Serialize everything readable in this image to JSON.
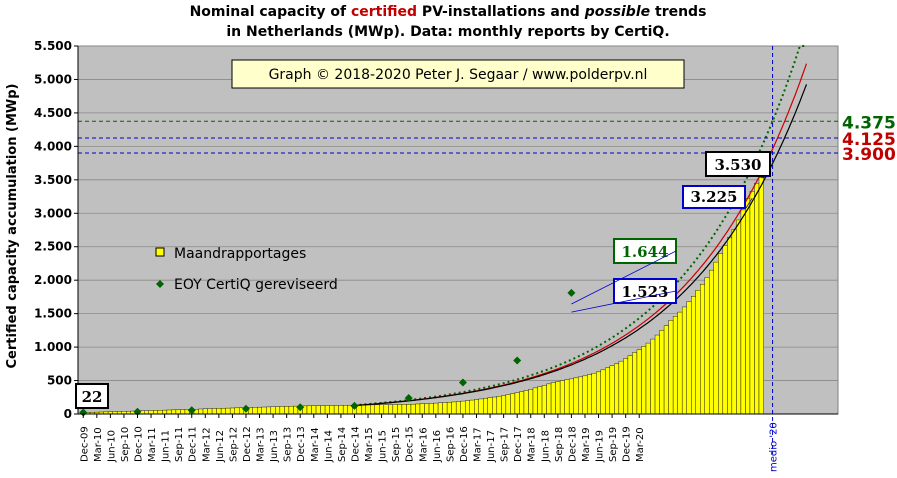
{
  "chart_data": {
    "type": "bar",
    "title_parts": [
      {
        "text": "Nominal capacity of ",
        "style": "normal",
        "color": "#000000"
      },
      {
        "text": "certified",
        "style": "normal",
        "color": "#c00000"
      },
      {
        "text": " PV-installations and ",
        "style": "normal",
        "color": "#000000"
      },
      {
        "text": "possible",
        "style": "italic",
        "color": "#000000"
      },
      {
        "text": " trends",
        "style": "normal",
        "color": "#000000"
      }
    ],
    "title_line2": "in Netherlands (MWp). Data: monthly reports by CertiQ.",
    "ylabel": "Certified capacity accumulation (MWp)",
    "ylim": [
      0,
      5500
    ],
    "yticks": [
      0,
      500,
      1000,
      1500,
      2000,
      2500,
      3000,
      3500,
      4000,
      4500,
      5000,
      5500
    ],
    "ytick_labels": [
      "0",
      "500",
      "1.000",
      "1.500",
      "2.000",
      "2.500",
      "3.000",
      "3.500",
      "4.000",
      "4.500",
      "5.000",
      "5.500"
    ],
    "x_tick_labels": [
      "Dec-09",
      "Mar-10",
      "Jun-10",
      "Sep-10",
      "Dec-10",
      "Mar-11",
      "Jun-11",
      "Sep-11",
      "Dec-11",
      "Mar-12",
      "Jun-12",
      "Sep-12",
      "Dec-12",
      "Mar-13",
      "Jun-13",
      "Sep-13",
      "Dec-13",
      "Mar-14",
      "Jun-14",
      "Sep-14",
      "Dec-14",
      "Mar-15",
      "Jun-15",
      "Sep-15",
      "Dec-15",
      "Mar-16",
      "Jun-16",
      "Sep-16",
      "Dec-16",
      "Mar-17",
      "Jun-17",
      "Sep-17",
      "Dec-17",
      "Mar-18",
      "Jun-18",
      "Sep-18",
      "Dec-18",
      "Mar-19",
      "Jun-19",
      "Sep-19",
      "Dec-19",
      "Mar-20"
    ],
    "medio_label": "medio '20",
    "grid": true,
    "legend_position": "middle-left",
    "series": [
      {
        "name": "Maandrapportages",
        "kind": "bar",
        "color": "#ffff00",
        "note": "monthly values Dec-09 .. Apr-20",
        "values": [
          22,
          24,
          26,
          28,
          30,
          32,
          34,
          36,
          38,
          40,
          42,
          44,
          46,
          48,
          50,
          52,
          54,
          56,
          58,
          60,
          62,
          64,
          66,
          68,
          70,
          72,
          75,
          78,
          80,
          82,
          84,
          86,
          88,
          90,
          92,
          94,
          96,
          98,
          100,
          102,
          104,
          106,
          108,
          110,
          112,
          114,
          116,
          118,
          120,
          121,
          122,
          123,
          124,
          125,
          126,
          127,
          128,
          129,
          130,
          131,
          132,
          133,
          134,
          135,
          136,
          137,
          138,
          139,
          140,
          141,
          142,
          143,
          145,
          147,
          150,
          153,
          156,
          159,
          163,
          167,
          171,
          175,
          180,
          186,
          193,
          200,
          208,
          216,
          225,
          234,
          244,
          254,
          265,
          277,
          290,
          304,
          319,
          335,
          352,
          370,
          390,
          410,
          430,
          450,
          470,
          485,
          500,
          512,
          525,
          540,
          555,
          570,
          590,
          610,
          630,
          660,
          690,
          720,
          750,
          790,
          830,
          870,
          920,
          960,
          1010,
          1060,
          1120,
          1180,
          1250,
          1320,
          1400,
          1460,
          1523,
          1600,
          1680,
          1760,
          1850,
          1940,
          2040,
          2150,
          2270,
          2400,
          2520,
          2640,
          2760,
          2900,
          3050,
          3225,
          3330,
          3450,
          3530
        ]
      },
      {
        "name": "EOY CertiQ gereviseerd",
        "kind": "marker",
        "color": "#006400",
        "points": [
          {
            "x": "Dec-09",
            "y": 22
          },
          {
            "x": "Dec-10",
            "y": 34
          },
          {
            "x": "Dec-11",
            "y": 56
          },
          {
            "x": "Dec-12",
            "y": 78
          },
          {
            "x": "Dec-13",
            "y": 100
          },
          {
            "x": "Dec-14",
            "y": 122
          },
          {
            "x": "Dec-15",
            "y": 240
          },
          {
            "x": "Dec-16",
            "y": 470
          },
          {
            "x": "Dec-17",
            "y": 800
          },
          {
            "x": "Dec-18",
            "y": 1810
          }
        ]
      }
    ],
    "trend_lines": [
      {
        "style": "dotted",
        "color": "#006400",
        "target": 4375
      },
      {
        "style": "solid",
        "color": "#cc0000",
        "target": 4125
      },
      {
        "style": "solid",
        "color": "#000000",
        "target": 3900
      }
    ],
    "reference_lines": [
      {
        "y": 4375,
        "color": "#006400",
        "label": "4.375"
      },
      {
        "y": 4125,
        "color": "#0000cc",
        "label": "4.125",
        "label_color": "#c00000"
      },
      {
        "y": 3900,
        "color": "#0000cc",
        "label": "3.900",
        "label_color": "#c00000"
      }
    ],
    "annotations": [
      {
        "text": "22",
        "border": "#000000",
        "color": "#000000"
      },
      {
        "text": "3.530",
        "border": "#000000",
        "color": "#000000"
      },
      {
        "text": "3.225",
        "border": "#0000cc",
        "color": "#000000"
      },
      {
        "text": "1.644",
        "border": "#006400",
        "color": "#006400"
      },
      {
        "text": "1.523",
        "border": "#0000cc",
        "color": "#000000"
      }
    ],
    "copyright": "Graph © 2018-2020 Peter J. Segaar / www.polderpv.nl"
  }
}
